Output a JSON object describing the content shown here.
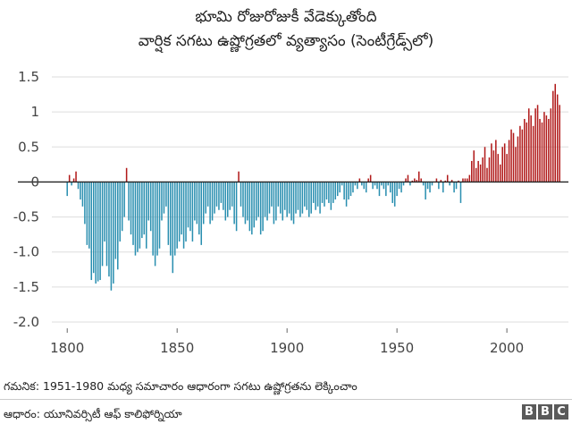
{
  "title": {
    "line1": "భూమి రోజురోజుకీ వేడెక్కుతోంది",
    "line2": "వార్షిక సగటు ఉష్ణోగ్రతలో వ్యత్యాసం (సెంటీగ్రేడ్స్‌లో)"
  },
  "footer": {
    "note": "గమనిక: 1951-1980 మధ్య సమాచారం ఆధారంగా సగటు ఉష్ణోగ్రతను లెక్కించాం",
    "source": "ఆధారం: యూనివర్సిటీ ఆఫ్ కాలిఫోర్నియా",
    "logo": [
      "B",
      "B",
      "C"
    ]
  },
  "colors": {
    "positive": "#b11a1a",
    "negative": "#2a8fb0",
    "grid": "#dddddd",
    "zero_line": "#222222"
  },
  "chart_data": {
    "type": "bar",
    "title": "భూమి రోజురోజుకీ వేడెక్కుతోంది / వార్షిక సగటు ఉష్ణోగ్రతలో వ్యత్యాసం (సెంటీగ్రేడ్స్‌లో)",
    "xlabel": "",
    "ylabel": "",
    "x_start": 1800,
    "x_end": 2018,
    "xlim": [
      1793,
      2028
    ],
    "ylim": [
      -2.0,
      1.5
    ],
    "xticks": [
      1800,
      1850,
      1900,
      1950,
      2000
    ],
    "yticks": [
      1.5,
      1,
      0.5,
      0,
      -0.5,
      -1.0,
      -1.5,
      -2.0
    ],
    "ytick_labels": [
      "1.5",
      "1",
      "0.5",
      "0",
      "-0.5",
      "-1.0",
      "-1.5",
      "-2.0"
    ],
    "grid": "horizontal",
    "values": [
      -0.2,
      0.1,
      -0.05,
      0.05,
      0.15,
      -0.1,
      -0.25,
      -0.35,
      -0.6,
      -0.9,
      -0.95,
      -1.4,
      -1.3,
      -1.45,
      -1.42,
      -1.4,
      -1.2,
      -0.85,
      -1.2,
      -1.35,
      -1.55,
      -1.45,
      -1.1,
      -1.25,
      -0.85,
      -0.7,
      -0.5,
      0.2,
      -0.55,
      -0.75,
      -0.9,
      -1.05,
      -1.0,
      -0.95,
      -0.8,
      -0.75,
      -0.95,
      -0.55,
      -0.7,
      -1.05,
      -1.2,
      -1.05,
      -0.95,
      -0.55,
      -0.45,
      -0.35,
      -0.9,
      -1.05,
      -1.3,
      -1.05,
      -0.95,
      -0.85,
      -0.75,
      -0.95,
      -0.85,
      -0.65,
      -0.7,
      -0.85,
      -0.55,
      -0.6,
      -0.75,
      -0.9,
      -0.6,
      -0.45,
      -0.35,
      -0.6,
      -0.55,
      -0.45,
      -0.35,
      -0.4,
      -0.3,
      -0.4,
      -0.55,
      -0.5,
      -0.4,
      -0.35,
      -0.6,
      -0.7,
      0.15,
      -0.35,
      -0.5,
      -0.6,
      -0.55,
      -0.7,
      -0.75,
      -0.65,
      -0.55,
      -0.5,
      -0.75,
      -0.7,
      -0.5,
      -0.55,
      -0.45,
      -0.35,
      -0.6,
      -0.55,
      -0.35,
      -0.45,
      -0.55,
      -0.4,
      -0.5,
      -0.45,
      -0.55,
      -0.6,
      -0.45,
      -0.4,
      -0.5,
      -0.45,
      -0.35,
      -0.4,
      -0.5,
      -0.45,
      -0.3,
      -0.4,
      -0.35,
      -0.45,
      -0.3,
      -0.35,
      -0.25,
      -0.3,
      -0.4,
      -0.3,
      -0.25,
      -0.2,
      -0.15,
      -0.05,
      -0.25,
      -0.35,
      -0.25,
      -0.2,
      -0.15,
      -0.05,
      -0.1,
      0.05,
      -0.05,
      -0.1,
      -0.15,
      0.05,
      0.1,
      -0.1,
      -0.05,
      -0.1,
      -0.2,
      -0.05,
      -0.1,
      -0.2,
      -0.05,
      -0.15,
      -0.3,
      -0.35,
      -0.2,
      -0.1,
      -0.15,
      -0.05,
      0.05,
      0.1,
      -0.05,
      0.02,
      0.05,
      0.03,
      0.15,
      0.05,
      -0.05,
      -0.25,
      -0.1,
      -0.15,
      -0.05,
      0.0,
      0.05,
      -0.1,
      0.03,
      -0.15,
      0.02,
      0.1,
      -0.05,
      0.03,
      -0.15,
      -0.1,
      0.02,
      -0.3,
      0.05,
      0.05,
      0.05,
      0.1,
      0.3,
      0.45,
      0.2,
      0.3,
      0.25,
      0.35,
      0.5,
      0.2,
      0.35,
      0.55,
      0.45,
      0.6,
      0.4,
      0.25,
      0.5,
      0.55,
      0.4,
      0.6,
      0.75,
      0.7,
      0.5,
      0.65,
      0.8,
      0.75,
      0.9,
      0.85,
      1.05,
      0.95,
      0.8,
      1.05,
      1.1,
      0.9,
      0.85,
      1.0,
      0.95,
      0.9,
      1.05,
      1.3,
      1.4,
      1.25,
      1.1
    ]
  }
}
